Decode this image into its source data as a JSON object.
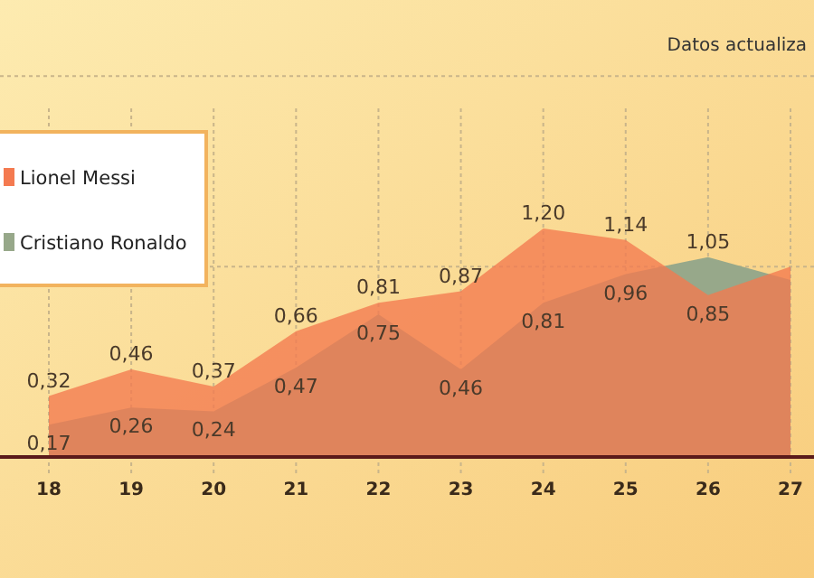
{
  "chart_data": {
    "type": "area",
    "annotations": [
      "Datos actualiza"
    ],
    "categories": [
      "18",
      "19",
      "20",
      "21",
      "22",
      "23",
      "24",
      "25",
      "26",
      "27"
    ],
    "series": [
      {
        "name": "Cristiano Ronaldo",
        "color": "#97a88a",
        "values": [
          0.17,
          0.26,
          0.24,
          0.47,
          0.75,
          0.46,
          0.81,
          0.96,
          1.05,
          0.93
        ],
        "value_labels": [
          "0,17",
          "0,26",
          "0,24",
          "0,47",
          "0,75",
          "0,46",
          "0,81",
          "0,96",
          "1,05",
          null
        ]
      },
      {
        "name": "Lionel Messi",
        "color": "#f47a50",
        "values": [
          0.32,
          0.46,
          0.37,
          0.66,
          0.81,
          0.87,
          1.2,
          1.14,
          0.85,
          1.0
        ],
        "value_labels": [
          "0,32",
          "0,46",
          "0,37",
          "0,66",
          "0,81",
          "0,87",
          "1,20",
          "1,14",
          "0,85",
          null
        ]
      }
    ],
    "ylim": [
      0,
      2.4
    ],
    "yticks": [
      {
        "value": 1,
        "label": null
      },
      {
        "value": 2,
        "label": null
      }
    ],
    "tick_labels": "x",
    "grid": true,
    "legend": "top left"
  }
}
